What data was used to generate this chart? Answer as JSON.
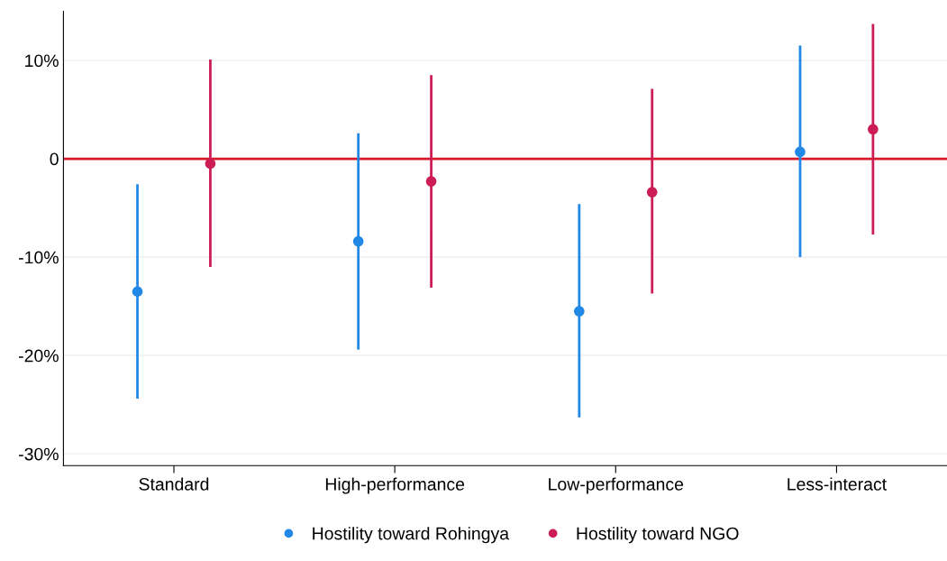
{
  "chart_data": {
    "type": "scatter",
    "categories": [
      "Standard",
      "High-performance",
      "Low-performance",
      "Less-interact"
    ],
    "series": [
      {
        "name": "Hostility toward Rohingya",
        "color": "#2188e6",
        "values": [
          -13.5,
          -8.4,
          -15.5,
          0.7
        ],
        "errors": [
          [
            -24.4,
            -2.6
          ],
          [
            -19.4,
            2.6
          ],
          [
            -26.3,
            -4.6
          ],
          [
            -10.0,
            11.5
          ]
        ]
      },
      {
        "name": "Hostility toward NGO",
        "color": "#cc1d55",
        "values": [
          -0.5,
          -2.3,
          -3.4,
          3.0
        ],
        "errors": [
          [
            -11.0,
            10.1
          ],
          [
            -13.1,
            8.5
          ],
          [
            -13.7,
            7.1
          ],
          [
            -7.7,
            13.7
          ]
        ]
      }
    ],
    "ylim": [
      -31.2,
      15
    ],
    "yticks": [
      {
        "value": -30,
        "label": "-30%"
      },
      {
        "value": -20,
        "label": "-20%"
      },
      {
        "value": -10,
        "label": "-10%"
      },
      {
        "value": 0,
        "label": "0"
      },
      {
        "value": 10,
        "label": "10%"
      }
    ],
    "ref_lines": [
      {
        "axis": "y",
        "value": 0,
        "color": "#d7192a"
      }
    ],
    "grid": "y",
    "legend": "bottom",
    "marker": "circle"
  }
}
